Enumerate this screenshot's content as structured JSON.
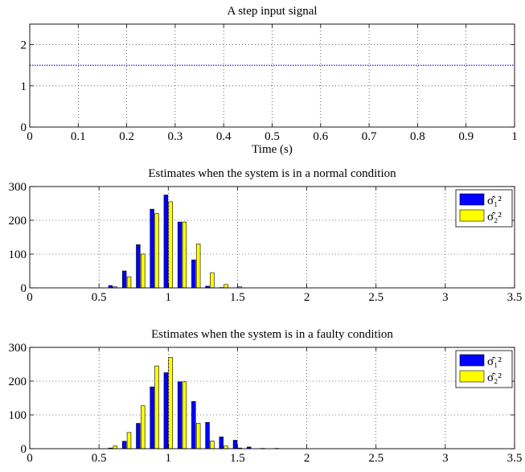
{
  "chart_data": [
    {
      "type": "line",
      "title": "A step input signal",
      "xlabel": "Time (s)",
      "ylabel": "",
      "xlim": [
        0,
        1
      ],
      "ylim": [
        0,
        2.5
      ],
      "xticks": [
        "0",
        "0.1",
        "0.2",
        "0.3",
        "0.4",
        "0.5",
        "0.6",
        "0.7",
        "0.8",
        "0.9",
        "1"
      ],
      "yticks": [
        "0",
        "1",
        "2"
      ],
      "grid": true,
      "series": [
        {
          "color": "#0000ff",
          "style": "dotted",
          "x": [
            0,
            1
          ],
          "values": [
            1.5,
            1.5
          ]
        }
      ]
    },
    {
      "type": "bar",
      "title": "Estimates when the system is in a normal condition",
      "xlabel": "",
      "ylabel": "",
      "xlim": [
        0,
        3.5
      ],
      "ylim": [
        0,
        300
      ],
      "xticks": [
        "0",
        "0.5",
        "1",
        "1.5",
        "2",
        "2.5",
        "3",
        "3.5"
      ],
      "yticks": [
        "0",
        "100",
        "200",
        "300"
      ],
      "grid": true,
      "legend_position": "top-right",
      "bin_width": 0.1,
      "x": [
        0.6,
        0.7,
        0.8,
        0.9,
        1.0,
        1.1,
        1.2,
        1.3,
        1.4,
        1.5
      ],
      "series": [
        {
          "name": "σ̂₁²",
          "color": "#0000ff",
          "values": [
            7,
            50,
            128,
            233,
            275,
            195,
            83,
            5,
            1,
            0
          ]
        },
        {
          "name": "σ̂₂²",
          "color": "#ffff00",
          "values": [
            3,
            33,
            100,
            220,
            255,
            195,
            130,
            45,
            10,
            3
          ]
        }
      ]
    },
    {
      "type": "bar",
      "title": "Estimates when the system is in a faulty condition",
      "xlabel": "",
      "ylabel": "",
      "xlim": [
        0,
        3.5
      ],
      "ylim": [
        0,
        300
      ],
      "xticks": [
        "0",
        "0.5",
        "1",
        "1.5",
        "2",
        "2.5",
        "3",
        "3.5"
      ],
      "yticks": [
        "0",
        "100",
        "200",
        "300"
      ],
      "grid": true,
      "legend_position": "top-right",
      "bin_width": 0.1,
      "x": [
        0.6,
        0.7,
        0.8,
        0.9,
        1.0,
        1.1,
        1.2,
        1.3,
        1.4,
        1.5,
        1.6,
        1.7,
        1.8
      ],
      "series": [
        {
          "name": "σ̂₁²",
          "color": "#0000ff",
          "values": [
            2,
            22,
            75,
            183,
            225,
            198,
            140,
            78,
            35,
            25,
            5,
            1,
            1
          ]
        },
        {
          "name": "σ̂₂²",
          "color": "#ffff00",
          "values": [
            8,
            48,
            127,
            245,
            270,
            198,
            75,
            23,
            8,
            2,
            0,
            0,
            0
          ]
        }
      ]
    }
  ]
}
